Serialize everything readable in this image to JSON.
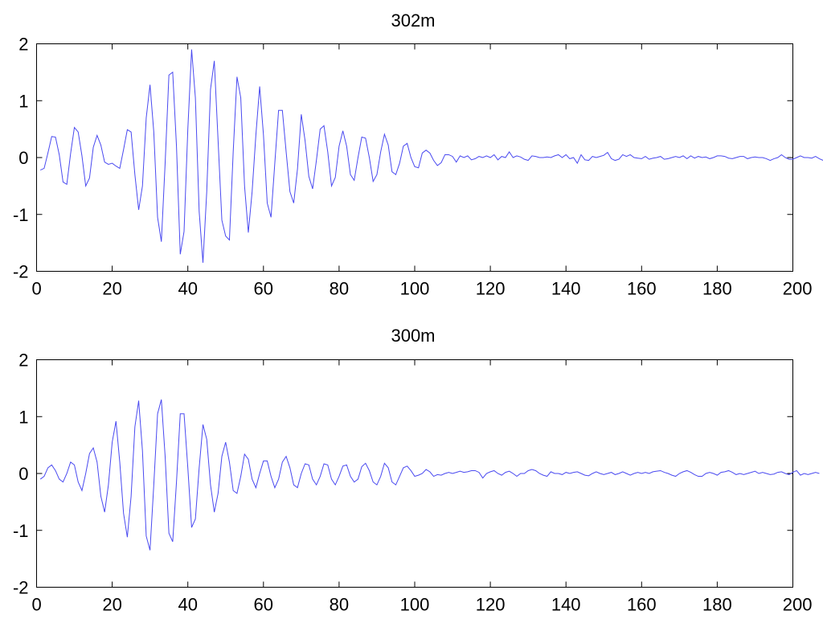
{
  "chart_data": [
    {
      "type": "line",
      "title": "302m",
      "xlim": [
        0,
        200
      ],
      "ylim": [
        -2,
        2
      ],
      "xticks": [
        0,
        20,
        40,
        60,
        80,
        100,
        120,
        140,
        160,
        180,
        200
      ],
      "yticks": [
        -2,
        -1,
        0,
        1,
        2
      ],
      "grid": false,
      "series": [
        {
          "color": "#4a4af0",
          "x_start": 1,
          "x_step": 1,
          "values": [
            -0.22,
            -0.19,
            0.08,
            0.37,
            0.36,
            0.05,
            -0.43,
            -0.47,
            0.07,
            0.53,
            0.45,
            0.03,
            -0.5,
            -0.36,
            0.18,
            0.39,
            0.22,
            -0.08,
            -0.12,
            -0.1,
            -0.15,
            -0.19,
            0.14,
            0.49,
            0.45,
            -0.3,
            -0.92,
            -0.5,
            0.7,
            1.28,
            0.45,
            -1.05,
            -1.48,
            -0.1,
            1.45,
            1.5,
            0.2,
            -1.7,
            -1.3,
            0.5,
            1.9,
            1.05,
            -0.95,
            -1.85,
            -0.6,
            1.2,
            1.7,
            0.3,
            -1.1,
            -1.38,
            -1.45,
            0.1,
            1.42,
            1.05,
            -0.5,
            -1.32,
            -0.6,
            0.4,
            1.25,
            0.4,
            -0.8,
            -1.05,
            -0.1,
            0.83,
            0.83,
            0.1,
            -0.6,
            -0.8,
            -0.2,
            0.76,
            0.3,
            -0.33,
            -0.55,
            -0.05,
            0.5,
            0.56,
            0.1,
            -0.5,
            -0.35,
            0.2,
            0.47,
            0.2,
            -0.3,
            -0.4,
            0.0,
            0.36,
            0.34,
            0.0,
            -0.42,
            -0.3,
            0.1,
            0.41,
            0.22,
            -0.25,
            -0.3,
            -0.1,
            0.2,
            0.25,
            0.0,
            -0.16,
            -0.18,
            0.08,
            0.13,
            0.08,
            -0.05,
            -0.14,
            -0.09,
            0.05,
            0.05,
            0.02,
            -0.08,
            0.03,
            0.0,
            0.03,
            -0.04,
            -0.02,
            0.02,
            0.0,
            0.03,
            0.0,
            0.05,
            -0.04,
            0.02,
            0.0,
            0.1,
            0.0,
            0.03,
            0.01,
            -0.03,
            -0.05,
            0.03,
            0.02,
            0.0,
            0.0,
            0.01,
            0.0,
            0.03,
            0.05,
            0.0,
            0.05,
            -0.02,
            0.0,
            -0.1,
            0.05,
            -0.04,
            -0.05,
            0.02,
            0.0,
            0.02,
            0.04,
            0.09,
            -0.02,
            -0.05,
            -0.03,
            0.05,
            0.02,
            0.05,
            0.0,
            -0.01,
            -0.02,
            0.02,
            -0.03,
            -0.01,
            0.0,
            0.02,
            -0.03,
            -0.02,
            0.0,
            0.02,
            0.0,
            0.03,
            -0.02,
            0.03,
            -0.01,
            0.02,
            0.0,
            0.01,
            -0.02,
            0.0,
            0.03,
            0.03,
            0.02,
            -0.01,
            -0.02,
            0.0,
            0.02,
            0.02,
            -0.02,
            0.0,
            0.01,
            0.0,
            0.0,
            -0.02,
            -0.05,
            -0.02,
            0.0,
            0.05,
            0.0,
            -0.03,
            -0.03,
            0.0,
            0.03,
            0.0,
            0.0,
            -0.01,
            0.02,
            -0.02,
            -0.05,
            0.0
          ]
        }
      ]
    },
    {
      "type": "line",
      "title": "300m",
      "xlim": [
        0,
        200
      ],
      "ylim": [
        -2,
        2
      ],
      "xticks": [
        0,
        20,
        40,
        60,
        80,
        100,
        120,
        140,
        160,
        180,
        200
      ],
      "yticks": [
        -2,
        -1,
        0,
        1,
        2
      ],
      "grid": false,
      "series": [
        {
          "color": "#4a4af0",
          "x_start": 1,
          "x_step": 1,
          "values": [
            -0.1,
            -0.05,
            0.1,
            0.15,
            0.05,
            -0.1,
            -0.15,
            0.0,
            0.2,
            0.15,
            -0.15,
            -0.3,
            0.0,
            0.35,
            0.45,
            0.2,
            -0.4,
            -0.68,
            -0.2,
            0.55,
            0.92,
            0.2,
            -0.7,
            -1.12,
            -0.4,
            0.82,
            1.28,
            0.4,
            -1.1,
            -1.35,
            -0.2,
            1.05,
            1.3,
            0.3,
            -1.05,
            -1.2,
            -0.15,
            1.05,
            1.05,
            0.1,
            -0.95,
            -0.8,
            0.1,
            0.86,
            0.6,
            -0.2,
            -0.68,
            -0.35,
            0.3,
            0.55,
            0.2,
            -0.3,
            -0.35,
            -0.05,
            0.34,
            0.25,
            -0.1,
            -0.25,
            0.0,
            0.22,
            0.22,
            -0.05,
            -0.25,
            -0.1,
            0.2,
            0.3,
            0.1,
            -0.2,
            -0.25,
            0.0,
            0.17,
            0.15,
            -0.1,
            -0.2,
            -0.05,
            0.17,
            0.15,
            -0.1,
            -0.2,
            -0.05,
            0.13,
            0.15,
            -0.05,
            -0.15,
            -0.1,
            0.12,
            0.18,
            0.05,
            -0.15,
            -0.2,
            -0.05,
            0.18,
            0.1,
            -0.15,
            -0.2,
            -0.05,
            0.1,
            0.13,
            0.05,
            -0.05,
            -0.03,
            0.0,
            0.07,
            0.03,
            -0.05,
            -0.02,
            -0.03,
            0.0,
            0.02,
            0.0,
            0.02,
            0.04,
            0.02,
            0.03,
            0.05,
            0.05,
            0.02,
            -0.08,
            0.0,
            0.03,
            0.05,
            0.0,
            -0.03,
            0.02,
            0.04,
            0.0,
            -0.05,
            0.0,
            0.0,
            0.05,
            0.07,
            0.05,
            0.0,
            -0.03,
            -0.05,
            0.03,
            0.0,
            0.0,
            -0.02,
            0.02,
            0.0,
            0.02,
            0.03,
            0.0,
            -0.03,
            -0.04,
            0.0,
            0.03,
            0.0,
            -0.02,
            0.0,
            0.02,
            -0.02,
            0.0,
            0.03,
            0.0,
            -0.03,
            0.0,
            0.02,
            0.0,
            0.02,
            0.0,
            0.03,
            0.04,
            0.05,
            0.02,
            0.0,
            -0.03,
            -0.05,
            0.0,
            0.03,
            0.05,
            0.02,
            -0.02,
            -0.05,
            -0.05,
            0.0,
            0.02,
            0.0,
            -0.03,
            0.02,
            0.03,
            0.05,
            0.02,
            -0.02,
            0.0,
            -0.02,
            0.0,
            0.02,
            0.04,
            0.0,
            0.02,
            0.0,
            -0.02,
            -0.01,
            0.02,
            0.03,
            0.0,
            -0.02,
            0.02,
            0.05,
            -0.03,
            0.0,
            -0.02,
            0.0,
            0.02,
            0.0
          ]
        }
      ]
    }
  ]
}
